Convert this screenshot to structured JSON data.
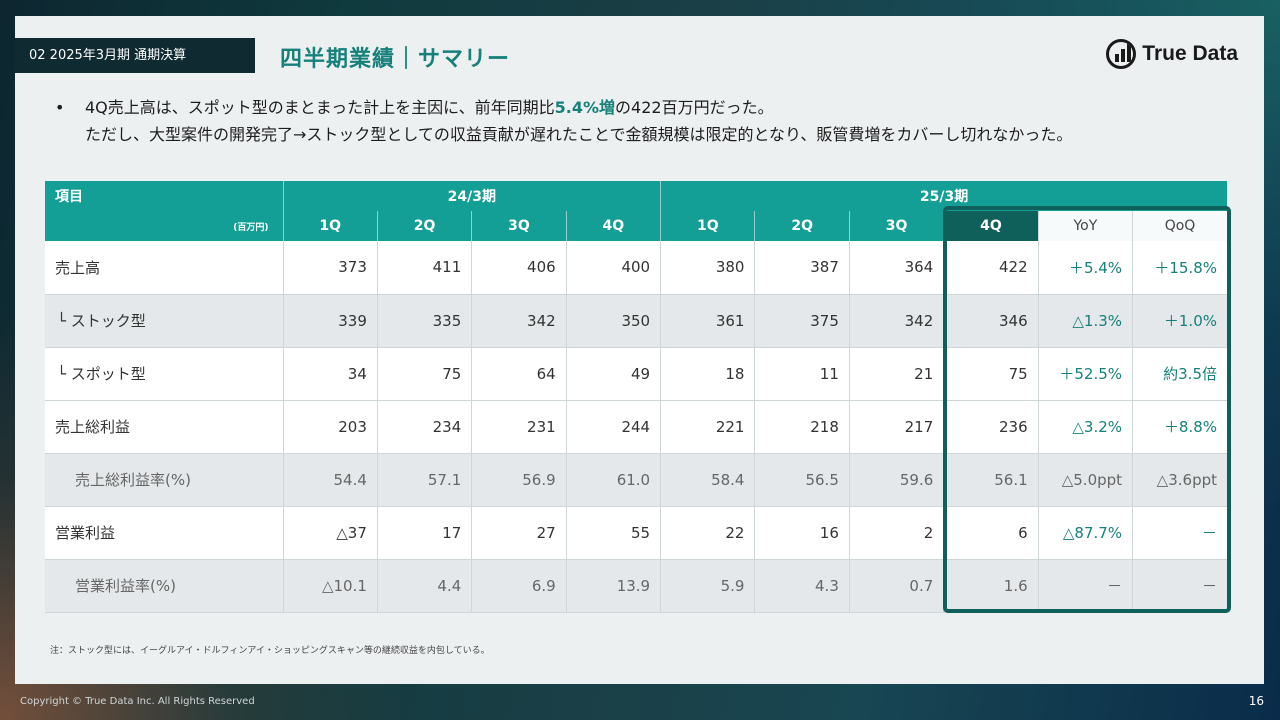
{
  "header": {
    "section_tag": "02 2025年3月期 通期決算",
    "title": "四半期業績｜サマリー",
    "logo_text": "True Data"
  },
  "bullets": {
    "line1_pre": "4Q売上高は、スポット型のまとまった計上を主因に、前年同期比",
    "line1_highlight": "5.4%増",
    "line1_post": "の422百万円だった。",
    "line2": "ただし、大型案件の開発完了→ストック型としての収益貢献が遅れたことで金額規模は限定的となり、販管費増をカバーし切れなかった。"
  },
  "table": {
    "item_header": "項目",
    "unit": "(百万円)",
    "group1": "24/3期",
    "group2": "25/3期",
    "columns": [
      "1Q",
      "2Q",
      "3Q",
      "4Q",
      "1Q",
      "2Q",
      "3Q",
      "4Q",
      "YoY",
      "QoQ"
    ],
    "rows": [
      {
        "label": "売上高",
        "values": [
          "373",
          "411",
          "406",
          "400",
          "380",
          "387",
          "364",
          "422",
          "＋5.4%",
          "＋15.8%"
        ]
      },
      {
        "label": "└  ストック型",
        "values": [
          "339",
          "335",
          "342",
          "350",
          "361",
          "375",
          "342",
          "346",
          "△1.3%",
          "＋1.0%"
        ]
      },
      {
        "label": "└  スポット型",
        "values": [
          "34",
          "75",
          "64",
          "49",
          "18",
          "11",
          "21",
          "75",
          "＋52.5%",
          "約3.5倍"
        ]
      },
      {
        "label": "売上総利益",
        "values": [
          "203",
          "234",
          "231",
          "244",
          "221",
          "218",
          "217",
          "236",
          "△3.2%",
          "＋8.8%"
        ]
      },
      {
        "label": "売上総利益率(%)",
        "values": [
          "54.4",
          "57.1",
          "56.9",
          "61.0",
          "58.4",
          "56.5",
          "59.6",
          "56.1",
          "△5.0ppt",
          "△3.6ppt"
        ]
      },
      {
        "label": "営業利益",
        "values": [
          "△37",
          "17",
          "27",
          "55",
          "22",
          "16",
          "2",
          "6",
          "△87.7%",
          "－"
        ]
      },
      {
        "label": "営業利益率(%)",
        "values": [
          "△10.1",
          "4.4",
          "6.9",
          "13.9",
          "5.9",
          "4.3",
          "0.7",
          "1.6",
          "－",
          "－"
        ]
      }
    ]
  },
  "note": "注：ストック型には、イーグルアイ・ドルフィンアイ・ショッピングスキャン等の継続収益を内包している。",
  "footer": {
    "copyright": "Copyright © True Data Inc. All Rights Reserved",
    "page_number": "16"
  }
}
